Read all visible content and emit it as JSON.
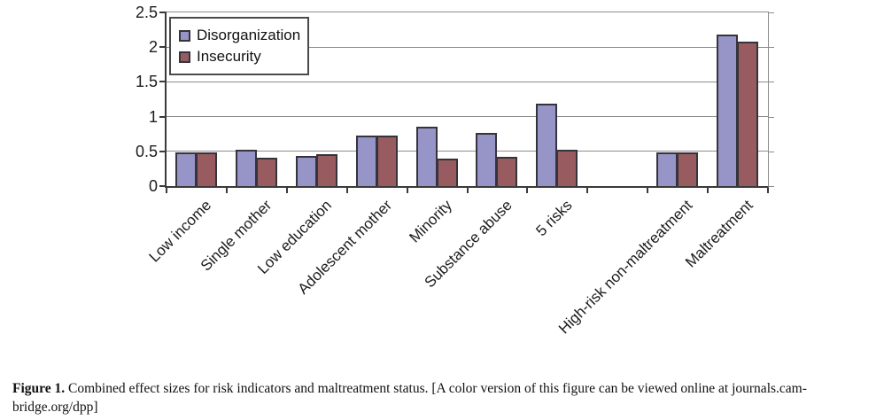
{
  "caption": {
    "label": "Figure 1.",
    "line1": "Combined effect sizes for risk indicators and maltreatment status. [A color version of this figure can be viewed online at journals.cam-",
    "line2": "bridge.org/dpp]"
  },
  "chart_data": {
    "type": "bar",
    "title": "",
    "xlabel": "",
    "ylabel": "",
    "ylim": [
      0,
      2.5
    ],
    "ytick_labels": [
      "0",
      "0.5",
      "1",
      "1.5",
      "2",
      "2.5"
    ],
    "grid": true,
    "legend_position": "top-left-inside",
    "n_slots": 10,
    "categories": [
      "Low income",
      "Single mother",
      "Low education",
      "Adolescent mother",
      "Minority",
      "Substance abuse",
      "5 risks",
      "High-risk non-maltreatment",
      "Maltreatment"
    ],
    "category_slots": [
      0,
      1,
      2,
      3,
      4,
      5,
      6,
      8,
      9
    ],
    "series": [
      {
        "name": "Disorganization",
        "color": "#9794c8",
        "values": [
          0.48,
          0.52,
          0.43,
          0.73,
          0.85,
          0.77,
          1.18,
          0.48,
          2.18
        ]
      },
      {
        "name": "Insecurity",
        "color": "#985b60",
        "values": [
          0.48,
          0.41,
          0.46,
          0.73,
          0.4,
          0.42,
          0.52,
          0.48,
          2.08
        ]
      }
    ],
    "colors": {
      "gridline": "#8d8d8d",
      "axis": "#3a3a3a",
      "bar_border": "#35343c"
    }
  }
}
